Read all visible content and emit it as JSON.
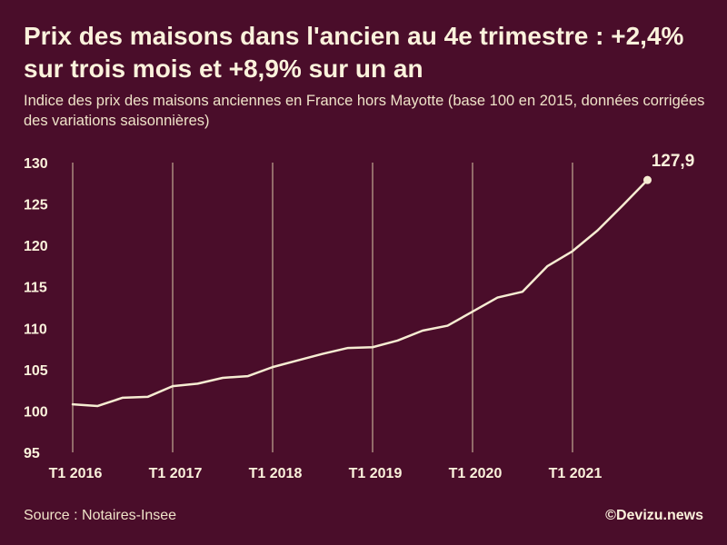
{
  "header": {
    "title": "Prix des maisons dans l'ancien au 4e trimestre : +2,4% sur trois mois et +8,9% sur un an",
    "subtitle": "Indice des prix des maisons anciennes en France hors Mayotte (base 100 en 2015, données corrigées des variations saisonnières)"
  },
  "footer": {
    "source": "Source : Notaires-Insee",
    "credit": "©Devizu.news"
  },
  "colors": {
    "background": "#4a0d2a",
    "line": "#f6ecd2",
    "text": "#fbf2dc"
  },
  "chart_data": {
    "type": "line",
    "title": "Prix des maisons dans l'ancien au 4e trimestre : +2,4% sur trois mois et +8,9% sur un an",
    "xlabel": "",
    "ylabel": "",
    "x": [
      "T1 2016",
      "T2 2016",
      "T3 2016",
      "T4 2016",
      "T1 2017",
      "T2 2017",
      "T3 2017",
      "T4 2017",
      "T1 2018",
      "T2 2018",
      "T3 2018",
      "T4 2018",
      "T1 2019",
      "T2 2019",
      "T3 2019",
      "T4 2019",
      "T1 2020",
      "T2 2020",
      "T3 2020",
      "T4 2020",
      "T1 2021",
      "T2 2021",
      "T3 2021",
      "T4 2021"
    ],
    "x_tick_labels": [
      "T1 2016",
      "T1 2017",
      "T1 2018",
      "T1 2019",
      "T1 2020",
      "T1 2021"
    ],
    "y_ticks": [
      95,
      100,
      105,
      110,
      115,
      120,
      125,
      130
    ],
    "ylim": [
      95,
      130
    ],
    "grid": "vertical",
    "series": [
      {
        "values": [
          100.8,
          100.6,
          101.6,
          101.7,
          103.0,
          103.3,
          104.0,
          104.2,
          105.3,
          106.1,
          106.9,
          107.6,
          107.7,
          108.5,
          109.7,
          110.3,
          112.0,
          113.7,
          114.4,
          117.5,
          119.3,
          121.8,
          124.8,
          127.9
        ]
      }
    ],
    "annotations": [
      {
        "label": "127,9",
        "x": "T4 2021",
        "y": 127.9
      }
    ]
  }
}
